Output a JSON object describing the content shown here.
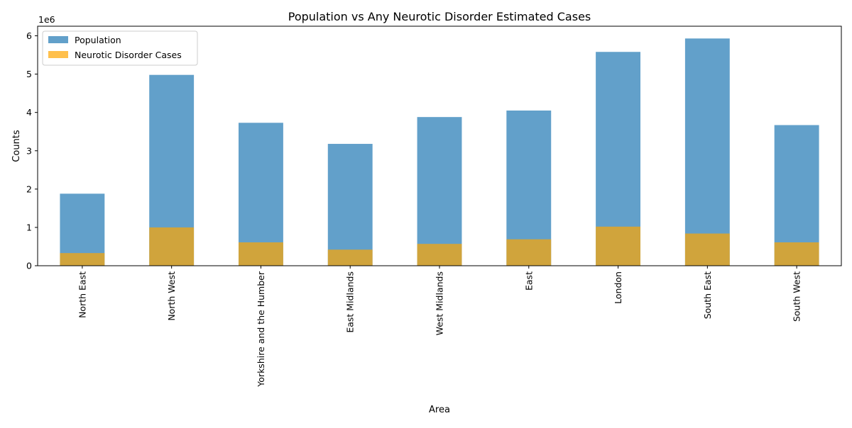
{
  "chart_data": {
    "type": "bar",
    "title": "Population vs Any Neurotic Disorder Estimated Cases",
    "xlabel": "Area",
    "ylabel": "Counts",
    "y_scale_label": "1e6",
    "ylim": [
      0,
      6.25
    ],
    "yticks": [
      0,
      1,
      2,
      3,
      4,
      5,
      6
    ],
    "y_unit_multiplier": 1000000,
    "categories": [
      "North East",
      "North West",
      "Yorkshire and the Humber",
      "East Midlands",
      "West Midlands",
      "East",
      "London",
      "South East",
      "South West"
    ],
    "series": [
      {
        "name": "Population",
        "color": "#1f77b4",
        "opacity": 0.7,
        "values": [
          1.88,
          4.98,
          3.73,
          3.18,
          3.88,
          4.05,
          5.58,
          5.93,
          3.67
        ]
      },
      {
        "name": "Neurotic Disorder Cases",
        "color": "#ffa500",
        "opacity": 0.7,
        "values": [
          0.33,
          1.0,
          0.61,
          0.42,
          0.57,
          0.69,
          1.02,
          0.84,
          0.61
        ]
      }
    ],
    "overlay": true,
    "grid": false,
    "legend_position": "upper-left"
  }
}
